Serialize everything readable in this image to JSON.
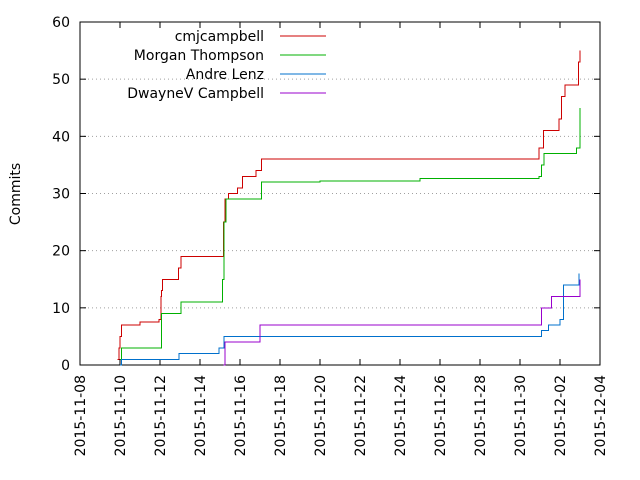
{
  "chart_data": {
    "type": "line",
    "title": "",
    "xlabel": "",
    "ylabel": "Commits",
    "ylim": [
      0,
      60
    ],
    "xlim": [
      "2015-11-08",
      "2015-12-04"
    ],
    "grid": "y-dotted",
    "legend_position": "top-left",
    "x_tick_labels": [
      "2015-11-08",
      "2015-11-10",
      "2015-11-12",
      "2015-11-14",
      "2015-11-16",
      "2015-11-18",
      "2015-11-20",
      "2015-11-22",
      "2015-11-24",
      "2015-11-26",
      "2015-11-28",
      "2015-11-30",
      "2015-12-02",
      "2015-12-04"
    ],
    "y_tick_labels": [
      "0",
      "10",
      "20",
      "30",
      "40",
      "50",
      "60"
    ],
    "y_ticks": [
      0,
      10,
      20,
      30,
      40,
      50,
      60
    ],
    "series": [
      {
        "name": "cmjcampbell",
        "color": "#cc0000",
        "points": [
          [
            "2015-11-09 21:00",
            1
          ],
          [
            "2015-11-09 23:00",
            3
          ],
          [
            "2015-11-10 00:00",
            5
          ],
          [
            "2015-11-10 02:00",
            7
          ],
          [
            "2015-11-11 00:00",
            7.5
          ],
          [
            "2015-11-11 23:00",
            8
          ],
          [
            "2015-11-12 01:00",
            12
          ],
          [
            "2015-11-12 02:00",
            13
          ],
          [
            "2015-11-12 03:00",
            15
          ],
          [
            "2015-11-12 20:00",
            15
          ],
          [
            "2015-11-12 22:00",
            17
          ],
          [
            "2015-11-13 01:00",
            19
          ],
          [
            "2015-11-15 03:00",
            19
          ],
          [
            "2015-11-15 04:00",
            25
          ],
          [
            "2015-11-15 06:00",
            29
          ],
          [
            "2015-11-15 10:00",
            30
          ],
          [
            "2015-11-15 21:00",
            31
          ],
          [
            "2015-11-16 03:00",
            33
          ],
          [
            "2015-11-16 19:00",
            34
          ],
          [
            "2015-11-17 02:00",
            36
          ],
          [
            "2015-11-30 22:00",
            36
          ],
          [
            "2015-11-30 23:00",
            38
          ],
          [
            "2015-12-01 04:00",
            41
          ],
          [
            "2015-12-01 20:00",
            41
          ],
          [
            "2015-12-01 23:00",
            43
          ],
          [
            "2015-12-02 02:00",
            47
          ],
          [
            "2015-12-02 06:00",
            49
          ],
          [
            "2015-12-02 18:00",
            49
          ],
          [
            "2015-12-02 22:00",
            53
          ],
          [
            "2015-12-03 00:00",
            55
          ]
        ]
      },
      {
        "name": "Morgan Thompson",
        "color": "#00b000",
        "points": [
          [
            "2015-11-10 00:00",
            1
          ],
          [
            "2015-11-10 02:00",
            3
          ],
          [
            "2015-11-12 00:00",
            3
          ],
          [
            "2015-11-12 02:00",
            9
          ],
          [
            "2015-11-12 22:00",
            9
          ],
          [
            "2015-11-13 01:00",
            11
          ],
          [
            "2015-11-15 00:00",
            11
          ],
          [
            "2015-11-15 03:00",
            15
          ],
          [
            "2015-11-15 05:00",
            25
          ],
          [
            "2015-11-15 07:00",
            29
          ],
          [
            "2015-11-16 23:00",
            29
          ],
          [
            "2015-11-17 02:00",
            32
          ],
          [
            "2015-11-20 00:00",
            32.2
          ],
          [
            "2015-11-25 00:00",
            32.6
          ],
          [
            "2015-11-30 23:00",
            33
          ],
          [
            "2015-12-01 02:00",
            35
          ],
          [
            "2015-12-01 05:00",
            37
          ],
          [
            "2015-12-02 06:00",
            37
          ],
          [
            "2015-12-02 20:00",
            38
          ],
          [
            "2015-12-03 00:00",
            45
          ]
        ]
      },
      {
        "name": "Andre Lenz",
        "color": "#0070cc",
        "points": [
          [
            "2015-11-10 00:00",
            0
          ],
          [
            "2015-11-10 02:00",
            1
          ],
          [
            "2015-11-12 00:00",
            1
          ],
          [
            "2015-11-12 23:00",
            2
          ],
          [
            "2015-11-14 23:00",
            3
          ],
          [
            "2015-11-15 05:00",
            5
          ],
          [
            "2015-11-30 23:00",
            5
          ],
          [
            "2015-12-01 02:00",
            6
          ],
          [
            "2015-12-01 10:00",
            7
          ],
          [
            "2015-12-02 00:00",
            8
          ],
          [
            "2015-12-02 04:00",
            14
          ],
          [
            "2015-12-02 20:00",
            14
          ],
          [
            "2015-12-02 23:00",
            16
          ]
        ]
      },
      {
        "name": "DwayneV Campbell",
        "color": "#9900cc",
        "points": [
          [
            "2015-11-15 04:00",
            0
          ],
          [
            "2015-11-15 06:00",
            4
          ],
          [
            "2015-11-16 20:00",
            4
          ],
          [
            "2015-11-17 00:00",
            7
          ],
          [
            "2015-11-30 22:00",
            7
          ],
          [
            "2015-12-01 02:00",
            10
          ],
          [
            "2015-12-01 10:00",
            10
          ],
          [
            "2015-12-01 14:00",
            12
          ],
          [
            "2015-12-02 22:00",
            12
          ],
          [
            "2015-12-03 00:00",
            15
          ]
        ]
      }
    ]
  }
}
